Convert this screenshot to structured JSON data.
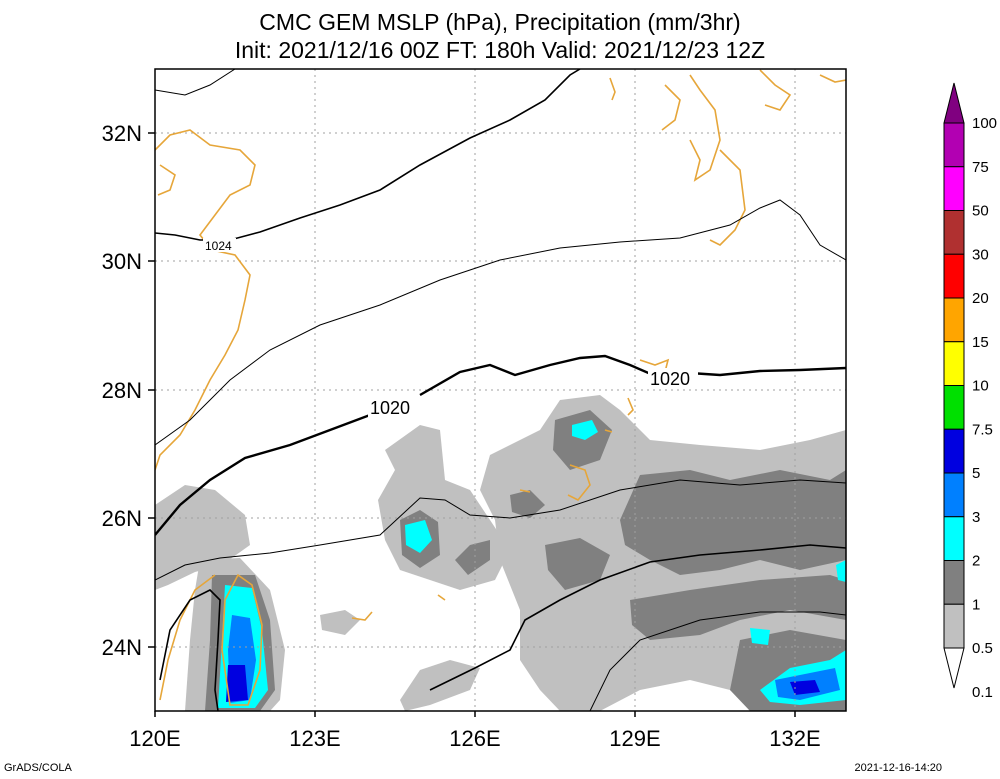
{
  "title": {
    "line1": "CMC GEM MSLP (hPa), Precipitation (mm/3hr)",
    "line2": "Init: 2021/12/16 00Z  FT: 180h  Valid: 2021/12/23 12Z"
  },
  "map": {
    "lon_range": [
      120,
      133
    ],
    "lat_range": [
      23,
      33
    ],
    "lon_ticks": [
      "120E",
      "123E",
      "126E",
      "129E",
      "132E"
    ],
    "lat_ticks": [
      "32N",
      "30N",
      "28N",
      "26N",
      "24N"
    ],
    "isobar_labels": [
      "1024",
      "1020",
      "1020"
    ],
    "grid": true,
    "coastline_color": "#e6a63a"
  },
  "colorbar": {
    "levels": [
      "100",
      "75",
      "50",
      "30",
      "20",
      "15",
      "10",
      "7.5",
      "5",
      "3",
      "2",
      "1",
      "0.5",
      "0.1"
    ],
    "colors": [
      "#800080",
      "#b200b2",
      "#ff00ff",
      "#b03030",
      "#ff0000",
      "#ffa500",
      "#ffff00",
      "#00e000",
      "#0000e0",
      "#0080ff",
      "#00ffff",
      "#808080",
      "#c0c0c0"
    ]
  },
  "footer": {
    "left": "GrADS/COLA",
    "right": "2021-12-16-14:20"
  }
}
